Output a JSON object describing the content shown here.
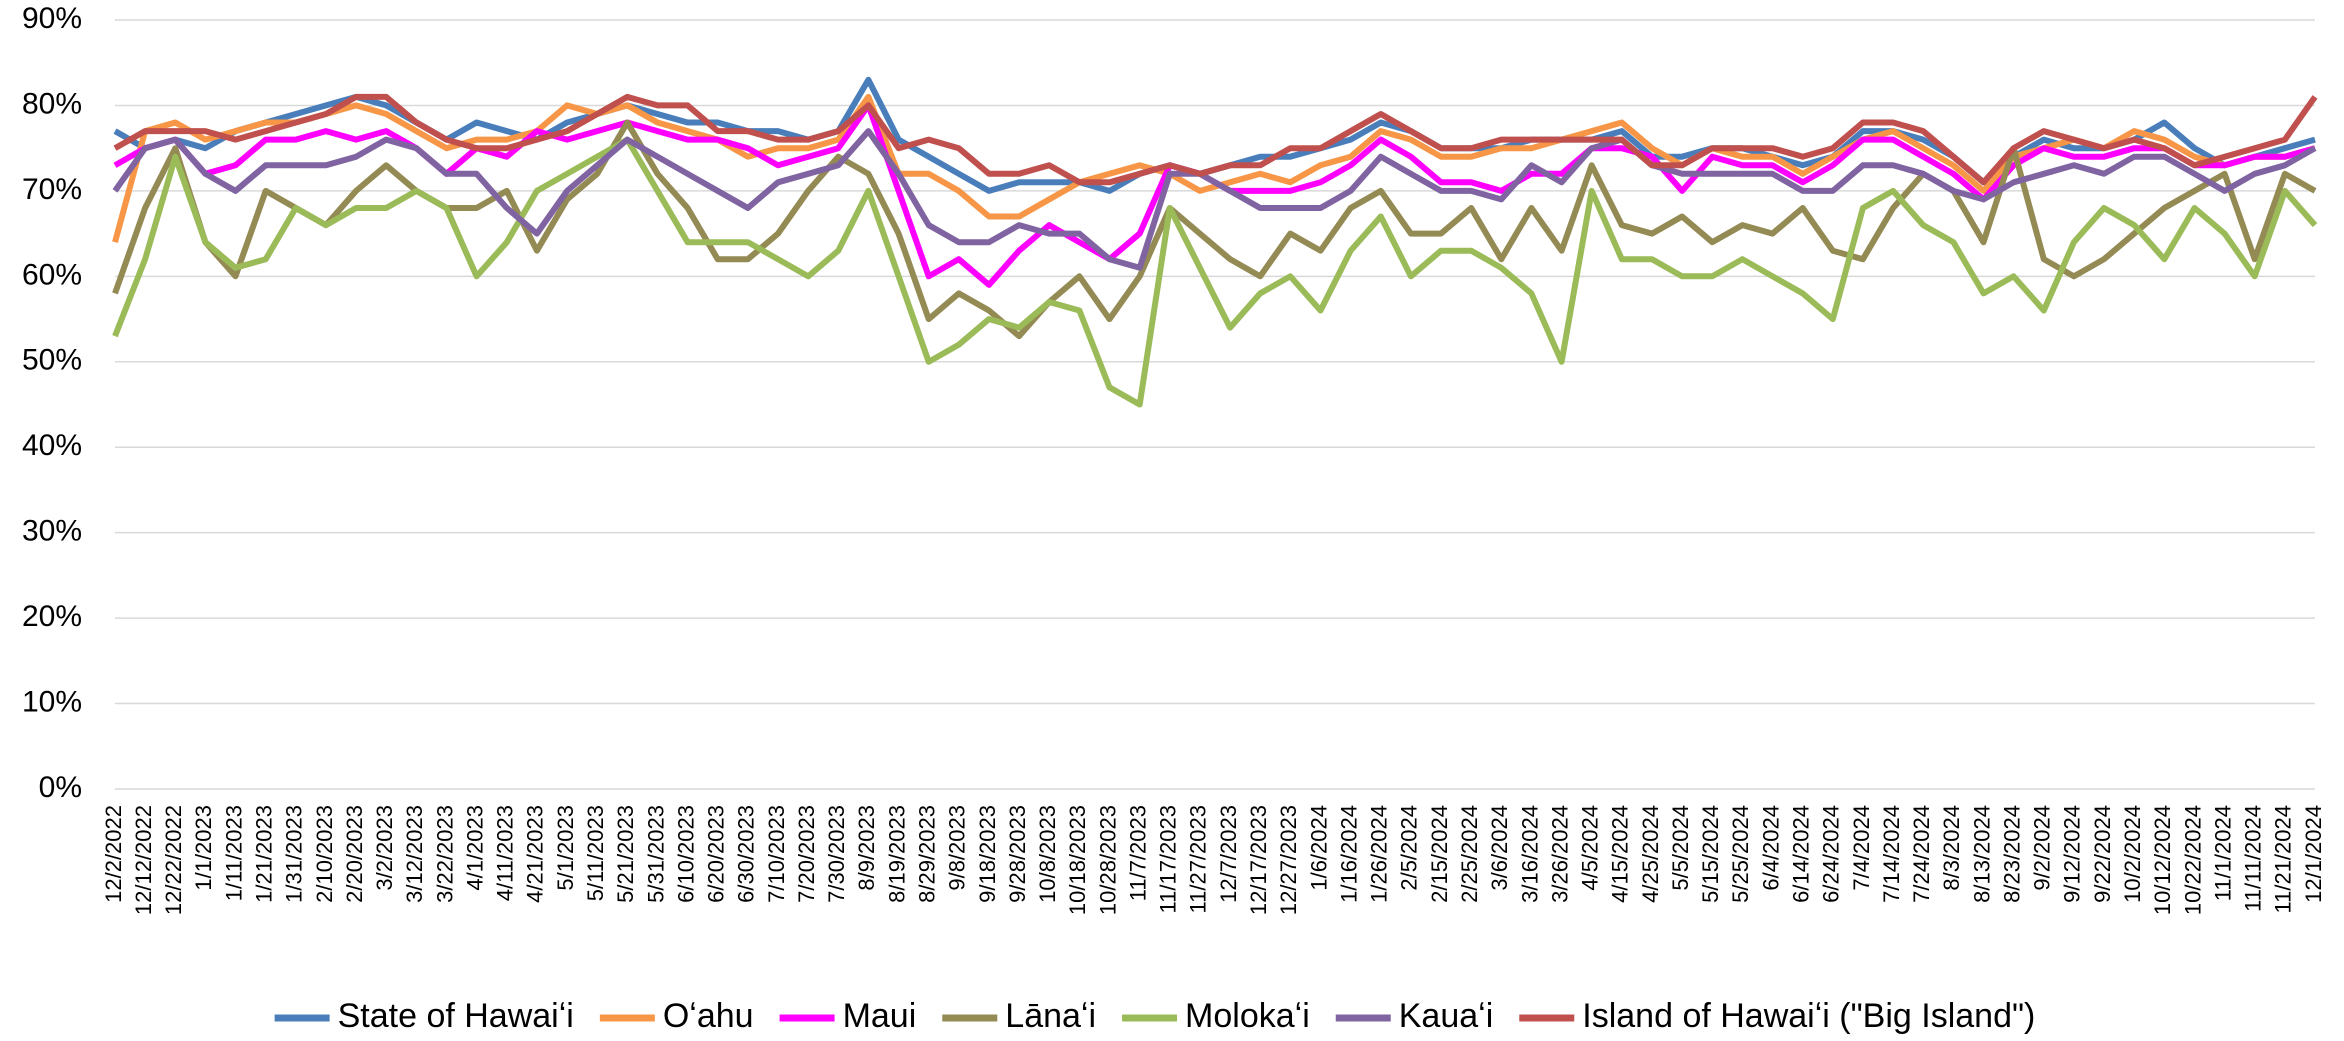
{
  "chart_data": {
    "type": "line",
    "categories": [
      "12/2/2022",
      "12/12/2022",
      "12/22/2022",
      "1/1/2023",
      "1/11/2023",
      "1/21/2023",
      "1/31/2023",
      "2/10/2023",
      "2/20/2023",
      "3/2/2023",
      "3/12/2023",
      "3/22/2023",
      "4/1/2023",
      "4/11/2023",
      "4/21/2023",
      "5/1/2023",
      "5/11/2023",
      "5/21/2023",
      "5/31/2023",
      "6/10/2023",
      "6/20/2023",
      "6/30/2023",
      "7/10/2023",
      "7/20/2023",
      "7/30/2023",
      "8/9/2023",
      "8/19/2023",
      "8/29/2023",
      "9/8/2023",
      "9/18/2023",
      "9/28/2023",
      "10/8/2023",
      "10/18/2023",
      "10/28/2023",
      "11/7/2023",
      "11/17/2023",
      "11/27/2023",
      "12/7/2023",
      "12/17/2023",
      "12/27/2023",
      "1/6/2024",
      "1/16/2024",
      "1/26/2024",
      "2/5/2024",
      "2/15/2024",
      "2/25/2024",
      "3/6/2024",
      "3/16/2024",
      "3/26/2024",
      "4/5/2024",
      "4/15/2024",
      "4/25/2024",
      "5/5/2024",
      "5/15/2024",
      "5/25/2024",
      "6/4/2024",
      "6/14/2024",
      "6/24/2024",
      "7/4/2024",
      "7/14/2024",
      "7/24/2024",
      "8/3/2024",
      "8/13/2024",
      "8/23/2024",
      "9/2/2024",
      "9/12/2024",
      "9/22/2024",
      "10/2/2024",
      "10/12/2024",
      "10/22/2024",
      "11/1/2024",
      "11/11/2024",
      "11/21/2024",
      "12/1/2024"
    ],
    "series": [
      {
        "name": "State of Hawaiʻi",
        "color": "#4a7ebb",
        "values": [
          77,
          75,
          76,
          75,
          77,
          78,
          79,
          80,
          81,
          80,
          78,
          76,
          78,
          77,
          76,
          78,
          79,
          80,
          79,
          78,
          78,
          77,
          77,
          76,
          77,
          83,
          76,
          74,
          72,
          70,
          71,
          71,
          71,
          70,
          72,
          73,
          72,
          73,
          74,
          74,
          75,
          76,
          78,
          77,
          75,
          75,
          75,
          76,
          76,
          76,
          77,
          74,
          74,
          75,
          75,
          74,
          73,
          74,
          77,
          77,
          76,
          74,
          71,
          74,
          76,
          75,
          75,
          76,
          78,
          75,
          73,
          74,
          75,
          76
        ]
      },
      {
        "name": "Oʻahu",
        "color": "#f79646",
        "values": [
          64,
          77,
          78,
          76,
          77,
          78,
          78,
          79,
          80,
          79,
          77,
          75,
          76,
          76,
          77,
          80,
          79,
          80,
          78,
          77,
          76,
          74,
          75,
          75,
          76,
          81,
          72,
          72,
          70,
          67,
          67,
          69,
          71,
          72,
          73,
          72,
          70,
          71,
          72,
          71,
          73,
          74,
          77,
          76,
          74,
          74,
          75,
          75,
          76,
          77,
          78,
          75,
          73,
          75,
          74,
          74,
          72,
          74,
          76,
          77,
          75,
          73,
          70,
          74,
          75,
          76,
          75,
          77,
          76,
          74,
          73,
          74,
          74,
          75
        ]
      },
      {
        "name": "Maui",
        "color": "#ff00ff",
        "values": [
          73,
          75,
          76,
          72,
          73,
          76,
          76,
          77,
          76,
          77,
          75,
          72,
          75,
          74,
          77,
          76,
          77,
          78,
          77,
          76,
          76,
          75,
          73,
          74,
          75,
          80,
          70,
          60,
          62,
          59,
          63,
          66,
          64,
          62,
          65,
          73,
          72,
          70,
          70,
          70,
          71,
          73,
          76,
          74,
          71,
          71,
          70,
          72,
          72,
          75,
          75,
          74,
          70,
          74,
          73,
          73,
          71,
          73,
          76,
          76,
          74,
          72,
          69,
          73,
          75,
          74,
          74,
          75,
          75,
          73,
          73,
          74,
          74,
          75
        ]
      },
      {
        "name": "Lānaʻi",
        "color": "#948a54",
        "values": [
          58,
          68,
          75,
          64,
          60,
          70,
          68,
          66,
          70,
          73,
          70,
          68,
          68,
          70,
          63,
          69,
          72,
          78,
          72,
          68,
          62,
          62,
          65,
          70,
          74,
          72,
          65,
          55,
          58,
          56,
          53,
          57,
          60,
          55,
          60,
          68,
          65,
          62,
          60,
          65,
          63,
          68,
          70,
          65,
          65,
          68,
          62,
          68,
          63,
          73,
          66,
          65,
          67,
          64,
          66,
          65,
          68,
          63,
          62,
          68,
          72,
          70,
          64,
          75,
          62,
          60,
          62,
          65,
          68,
          70,
          72,
          62,
          72,
          70
        ]
      },
      {
        "name": "Molokaʻi",
        "color": "#9bbb59",
        "values": [
          53,
          62,
          74,
          64,
          61,
          62,
          68,
          66,
          68,
          68,
          70,
          68,
          60,
          64,
          70,
          72,
          74,
          76,
          70,
          64,
          64,
          64,
          62,
          60,
          63,
          70,
          60,
          50,
          52,
          55,
          54,
          57,
          56,
          47,
          45,
          68,
          61,
          54,
          58,
          60,
          56,
          63,
          67,
          60,
          63,
          63,
          61,
          58,
          50,
          70,
          62,
          62,
          60,
          60,
          62,
          60,
          58,
          55,
          68,
          70,
          66,
          64,
          58,
          60,
          56,
          64,
          68,
          66,
          62,
          68,
          65,
          60,
          70,
          66
        ]
      },
      {
        "name": "Kauaʻi",
        "color": "#8064a2",
        "values": [
          70,
          75,
          76,
          72,
          70,
          73,
          73,
          73,
          74,
          76,
          75,
          72,
          72,
          68,
          65,
          70,
          73,
          76,
          74,
          72,
          70,
          68,
          71,
          72,
          73,
          77,
          72,
          66,
          64,
          64,
          66,
          65,
          65,
          62,
          61,
          72,
          72,
          70,
          68,
          68,
          68,
          70,
          74,
          72,
          70,
          70,
          69,
          73,
          71,
          75,
          76,
          73,
          72,
          72,
          72,
          72,
          70,
          70,
          73,
          73,
          72,
          70,
          69,
          71,
          72,
          73,
          72,
          74,
          74,
          72,
          70,
          72,
          73,
          75
        ]
      },
      {
        "name": "Island of Hawaiʻi (\"Big Island\")",
        "color": "#c0504d",
        "values": [
          75,
          77,
          77,
          77,
          76,
          77,
          78,
          79,
          81,
          81,
          78,
          76,
          75,
          75,
          76,
          77,
          79,
          81,
          80,
          80,
          77,
          77,
          76,
          76,
          77,
          80,
          75,
          76,
          75,
          72,
          72,
          73,
          71,
          71,
          72,
          73,
          72,
          73,
          73,
          75,
          75,
          77,
          79,
          77,
          75,
          75,
          76,
          76,
          76,
          76,
          76,
          73,
          73,
          75,
          75,
          75,
          74,
          75,
          78,
          78,
          77,
          74,
          71,
          75,
          77,
          76,
          75,
          76,
          75,
          73,
          74,
          75,
          76,
          81
        ]
      }
    ],
    "ylim": [
      0,
      90
    ],
    "yticks": [
      {
        "value": 0,
        "label": "0%"
      },
      {
        "value": 10,
        "label": "10%"
      },
      {
        "value": 20,
        "label": "20%"
      },
      {
        "value": 30,
        "label": "30%"
      },
      {
        "value": 40,
        "label": "40%"
      },
      {
        "value": 50,
        "label": "50%"
      },
      {
        "value": 60,
        "label": "60%"
      },
      {
        "value": 70,
        "label": "70%"
      },
      {
        "value": 80,
        "label": "80%"
      },
      {
        "value": 90,
        "label": "90%"
      }
    ],
    "grid": true,
    "legend": "bottom"
  }
}
